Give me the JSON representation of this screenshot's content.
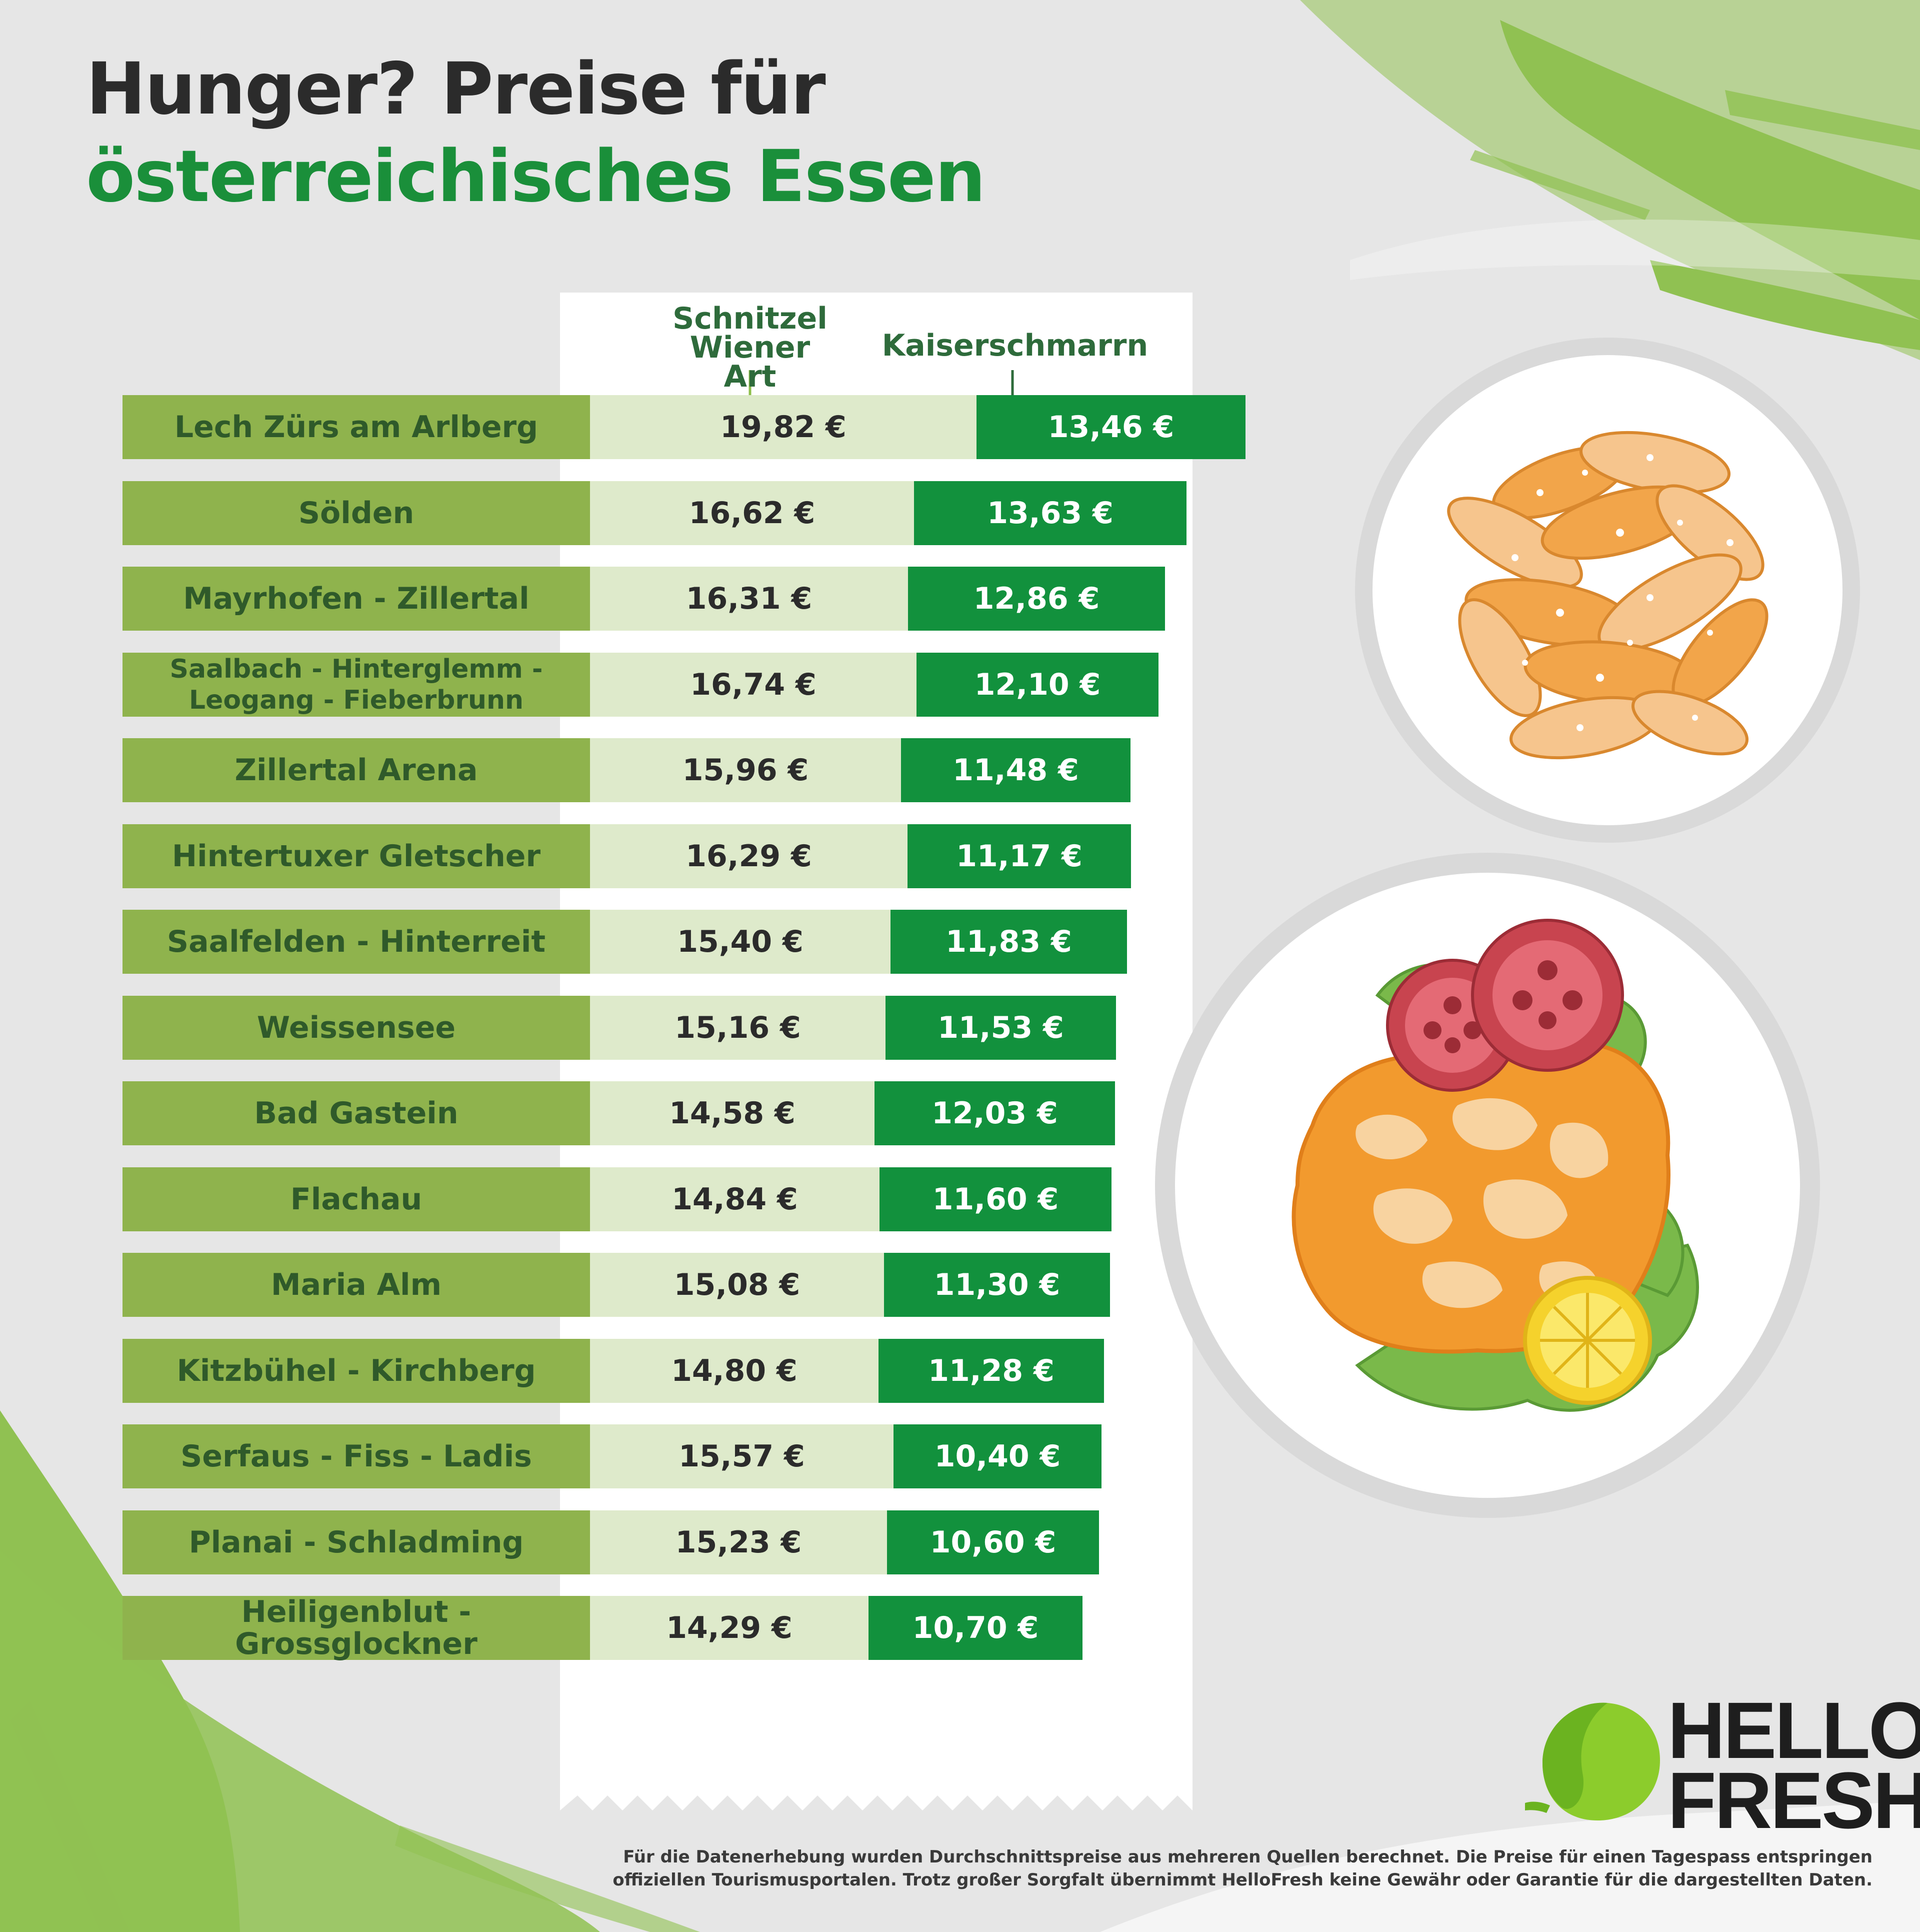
{
  "title": {
    "line1": "Hunger? Preise für",
    "line2": "österreichisches Essen"
  },
  "colors": {
    "location_bar": "#8fb34d",
    "schnitzel_bar": "#deeacb",
    "kaiserschmarrn_bar": "#12913d",
    "accent_green": "#1a8f3a",
    "brush_green": "#8cbf4a"
  },
  "chart_data": {
    "type": "bar",
    "title": "Hunger? Preise für österreichisches Essen",
    "unit": "€",
    "series": [
      {
        "name": "Schnitzel Wiener Art",
        "values": [
          19.82,
          16.62,
          16.31,
          16.74,
          15.96,
          16.29,
          15.4,
          15.16,
          14.58,
          14.84,
          15.08,
          14.8,
          15.57,
          15.23,
          14.29
        ]
      },
      {
        "name": "Kaiserschmarrn",
        "values": [
          13.46,
          13.63,
          12.86,
          12.1,
          11.48,
          11.17,
          11.83,
          11.53,
          12.03,
          11.6,
          11.3,
          11.28,
          10.4,
          10.6,
          10.7
        ]
      }
    ],
    "rows": [
      {
        "location": "Lech Zürs am Arlberg",
        "schnitzel": 19.82,
        "schnitzel_label": "19,82 €",
        "kaiser": 13.46,
        "kaiser_label": "13,46 €"
      },
      {
        "location": "Sölden",
        "schnitzel": 16.62,
        "schnitzel_label": "16,62 €",
        "kaiser": 13.63,
        "kaiser_label": "13,63 €"
      },
      {
        "location": "Mayrhofen - Zillertal",
        "schnitzel": 16.31,
        "schnitzel_label": "16,31 €",
        "kaiser": 12.86,
        "kaiser_label": "12,86 €"
      },
      {
        "location": "Saalbach - Hinterglemm - Leogang - Fieberbrunn",
        "schnitzel": 16.74,
        "schnitzel_label": "16,74 €",
        "kaiser": 12.1,
        "kaiser_label": "12,10 €"
      },
      {
        "location": "Zillertal Arena",
        "schnitzel": 15.96,
        "schnitzel_label": "15,96 €",
        "kaiser": 11.48,
        "kaiser_label": "11,48 €"
      },
      {
        "location": "Hintertuxer Gletscher",
        "schnitzel": 16.29,
        "schnitzel_label": "16,29 €",
        "kaiser": 11.17,
        "kaiser_label": "11,17 €"
      },
      {
        "location": "Saalfelden - Hinterreit",
        "schnitzel": 15.4,
        "schnitzel_label": "15,40 €",
        "kaiser": 11.83,
        "kaiser_label": "11,83 €"
      },
      {
        "location": "Weissensee",
        "schnitzel": 15.16,
        "schnitzel_label": "15,16 €",
        "kaiser": 11.53,
        "kaiser_label": "11,53 €"
      },
      {
        "location": "Bad Gastein",
        "schnitzel": 14.58,
        "schnitzel_label": "14,58 €",
        "kaiser": 12.03,
        "kaiser_label": "12,03 €"
      },
      {
        "location": "Flachau",
        "schnitzel": 14.84,
        "schnitzel_label": "14,84 €",
        "kaiser": 11.6,
        "kaiser_label": "11,60 €"
      },
      {
        "location": "Maria Alm",
        "schnitzel": 15.08,
        "schnitzel_label": "15,08 €",
        "kaiser": 11.3,
        "kaiser_label": "11,30 €"
      },
      {
        "location": "Kitzbühel - Kirchberg",
        "schnitzel": 14.8,
        "schnitzel_label": "14,80 €",
        "kaiser": 11.28,
        "kaiser_label": "11,28 €"
      },
      {
        "location": "Serfaus - Fiss - Ladis",
        "schnitzel": 15.57,
        "schnitzel_label": "15,57 €",
        "kaiser": 10.4,
        "kaiser_label": "10,40 €"
      },
      {
        "location": "Planai - Schladming",
        "schnitzel": 15.23,
        "schnitzel_label": "15,23 €",
        "kaiser": 10.6,
        "kaiser_label": "10,60 €"
      },
      {
        "location": "Heiligenblut - Grossglockner",
        "schnitzel": 14.29,
        "schnitzel_label": "14,29 €",
        "kaiser": 10.7,
        "kaiser_label": "10,70 €"
      }
    ],
    "legend": [
      "Schnitzel Wiener Art",
      "Kaiserschmarrn"
    ]
  },
  "headers": {
    "schnitzel_line1": "Schnitzel Wiener",
    "schnitzel_line2": "Art",
    "kaiser": "Kaiserschmarrn"
  },
  "logo": {
    "line1": "HELLO",
    "line2": "FRESH"
  },
  "footnote": {
    "line1": "Für die Datenerhebung wurden Durchschnittspreise aus mehreren Quellen berechnet. Die Preise für einen Tagespass entspringen",
    "line2": "offiziellen Tourismusportalen. Trotz großer Sorgfalt übernimmt HelloFresh keine Gewähr oder Garantie für die dargestellten Daten."
  },
  "icons": [
    "kaiserschmarrn-plate-icon",
    "schnitzel-plate-icon",
    "lime-logo-icon",
    "brush-stroke"
  ]
}
